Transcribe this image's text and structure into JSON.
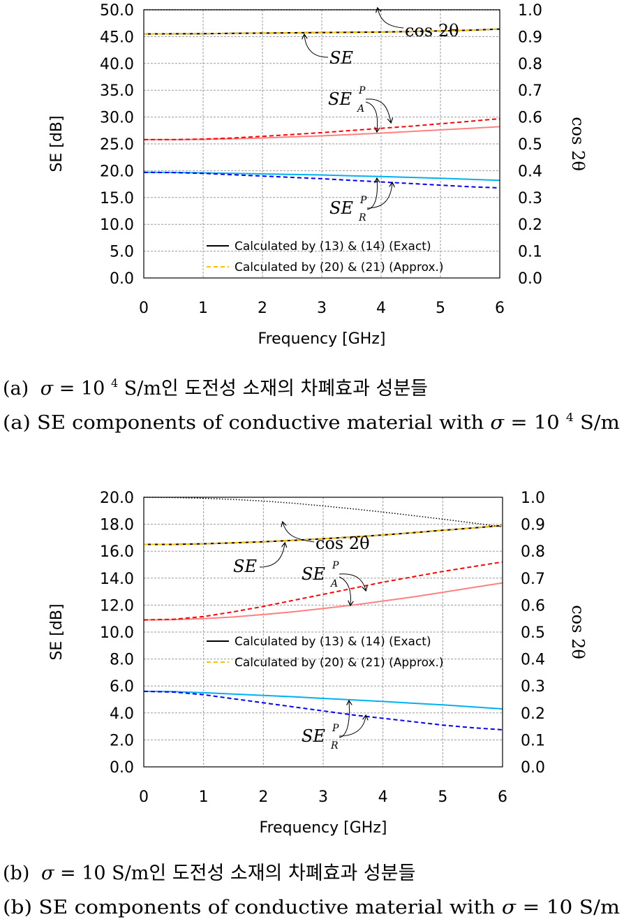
{
  "chart_data": [
    {
      "type": "line",
      "xlabel": "Frequency [GHz]",
      "ylabel": "SE [dB]",
      "y2label": "cos 2θ",
      "xlim": [
        0,
        6
      ],
      "ylim": [
        0,
        50
      ],
      "y2lim": [
        0,
        1
      ],
      "xticks": [
        "0",
        "1",
        "2",
        "3",
        "4",
        "5",
        "6"
      ],
      "yticks": [
        "0.0",
        "5.0",
        "10.0",
        "15.0",
        "20.0",
        "25.0",
        "30.0",
        "35.0",
        "40.0",
        "45.0",
        "50.0"
      ],
      "y2ticks": [
        "0.0",
        "0.1",
        "0.2",
        "0.3",
        "0.4",
        "0.5",
        "0.6",
        "0.7",
        "0.8",
        "0.9",
        "1.0"
      ],
      "grid": true,
      "legend": [
        {
          "label": "Calculated by (13) & (14) (Exact)",
          "style": "solid",
          "color": "#000000"
        },
        {
          "label": "Calculated by (20) & (21) (Approx.)",
          "style": "dashed",
          "color": "#ffc000"
        }
      ],
      "legend_position": "bottom-right",
      "x": [
        0,
        0.5,
        1,
        1.5,
        2,
        2.5,
        3,
        3.5,
        4,
        4.5,
        5,
        5.5,
        6
      ],
      "series": [
        {
          "name": "SE",
          "axis": "left",
          "color": "#000000",
          "style": "solid",
          "values": [
            45.5,
            45.52,
            45.55,
            45.6,
            45.65,
            45.7,
            45.75,
            45.8,
            45.85,
            45.95,
            46.05,
            46.2,
            46.4
          ]
        },
        {
          "name": "SE",
          "axis": "left",
          "color": "#ffc000",
          "style": "dashed",
          "values": [
            45.5,
            45.52,
            45.55,
            45.6,
            45.65,
            45.7,
            45.75,
            45.8,
            45.85,
            45.95,
            46.05,
            46.2,
            46.4
          ]
        },
        {
          "name": "SE_A^P",
          "axis": "left",
          "color": "#ff8080",
          "style": "solid",
          "values": [
            25.8,
            25.8,
            25.85,
            25.95,
            26.1,
            26.3,
            26.5,
            26.75,
            27.0,
            27.3,
            27.6,
            27.9,
            28.2
          ]
        },
        {
          "name": "SE_A^P",
          "axis": "left",
          "color": "#ff0000",
          "style": "dashed",
          "values": [
            25.8,
            25.8,
            25.9,
            26.1,
            26.4,
            26.75,
            27.1,
            27.5,
            27.9,
            28.3,
            28.75,
            29.2,
            29.7
          ]
        },
        {
          "name": "SE_R^P",
          "axis": "left",
          "color": "#00b0f0",
          "style": "solid",
          "values": [
            19.7,
            19.68,
            19.6,
            19.5,
            19.4,
            19.3,
            19.2,
            19.05,
            18.9,
            18.75,
            18.6,
            18.4,
            18.2
          ]
        },
        {
          "name": "SE_R^P",
          "axis": "left",
          "color": "#0000ff",
          "style": "dashed",
          "values": [
            19.7,
            19.65,
            19.5,
            19.25,
            19.0,
            18.75,
            18.5,
            18.2,
            17.9,
            17.6,
            17.3,
            17.0,
            16.8
          ]
        },
        {
          "name": "cos 2θ",
          "axis": "right",
          "color": "#000000",
          "style": "dotted",
          "values": [
            1.0,
            1.0,
            1.0,
            1.0,
            1.0,
            1.0,
            1.0,
            1.0,
            1.0,
            1.0,
            1.0,
            1.0,
            1.0
          ]
        }
      ]
    },
    {
      "type": "line",
      "xlabel": "Frequency [GHz]",
      "ylabel": "SE [dB]",
      "y2label": "cos 2θ",
      "xlim": [
        0,
        6
      ],
      "ylim": [
        0,
        20
      ],
      "y2lim": [
        0,
        1
      ],
      "xticks": [
        "0",
        "1",
        "2",
        "3",
        "4",
        "5",
        "6"
      ],
      "yticks": [
        "0.0",
        "2.0",
        "4.0",
        "6.0",
        "8.0",
        "10.0",
        "12.0",
        "14.0",
        "16.0",
        "18.0",
        "20.0"
      ],
      "y2ticks": [
        "0.0",
        "0.1",
        "0.2",
        "0.3",
        "0.4",
        "0.5",
        "0.6",
        "0.7",
        "0.8",
        "0.9",
        "1.0"
      ],
      "grid": true,
      "legend": [
        {
          "label": "Calculated by (13) & (14) (Exact)",
          "style": "solid",
          "color": "#000000"
        },
        {
          "label": "Calculated by (20) & (21) (Approx.)",
          "style": "dashed",
          "color": "#ffc000"
        }
      ],
      "legend_position": "center-right",
      "x": [
        0,
        0.5,
        1,
        1.5,
        2,
        2.5,
        3,
        3.5,
        4,
        4.5,
        5,
        5.5,
        6
      ],
      "series": [
        {
          "name": "SE",
          "axis": "left",
          "color": "#000000",
          "style": "solid",
          "values": [
            16.5,
            16.5,
            16.55,
            16.62,
            16.7,
            16.8,
            16.92,
            17.05,
            17.2,
            17.37,
            17.55,
            17.72,
            17.9
          ]
        },
        {
          "name": "SE",
          "axis": "left",
          "color": "#ffc000",
          "style": "dashed",
          "values": [
            16.5,
            16.5,
            16.55,
            16.62,
            16.7,
            16.8,
            16.92,
            17.05,
            17.2,
            17.37,
            17.55,
            17.72,
            17.9
          ]
        },
        {
          "name": "SE_A^P",
          "axis": "left",
          "color": "#ff8080",
          "style": "solid",
          "values": [
            10.9,
            10.92,
            11.0,
            11.12,
            11.3,
            11.5,
            11.75,
            12.0,
            12.3,
            12.6,
            12.95,
            13.3,
            13.65
          ]
        },
        {
          "name": "SE_A^P",
          "axis": "left",
          "color": "#ff0000",
          "style": "dashed",
          "values": [
            10.9,
            10.95,
            11.15,
            11.5,
            11.9,
            12.35,
            12.8,
            13.25,
            13.7,
            14.1,
            14.5,
            14.85,
            15.2
          ]
        },
        {
          "name": "SE_R^P",
          "axis": "left",
          "color": "#00b0f0",
          "style": "solid",
          "values": [
            5.6,
            5.58,
            5.5,
            5.4,
            5.3,
            5.2,
            5.08,
            4.97,
            4.85,
            4.72,
            4.6,
            4.45,
            4.3
          ]
        },
        {
          "name": "SE_R^P",
          "axis": "left",
          "color": "#0000ff",
          "style": "dashed",
          "values": [
            5.6,
            5.55,
            5.35,
            5.05,
            4.75,
            4.45,
            4.15,
            3.85,
            3.6,
            3.35,
            3.1,
            2.9,
            2.75
          ]
        },
        {
          "name": "cos 2θ",
          "axis": "right",
          "color": "#000000",
          "style": "dotted",
          "values": [
            1.0,
            0.999,
            0.996,
            0.992,
            0.986,
            0.978,
            0.968,
            0.957,
            0.945,
            0.932,
            0.919,
            0.905,
            0.89
          ]
        }
      ]
    }
  ],
  "annotations": {
    "a": {
      "se": "SE",
      "se_a": "SE",
      "se_a_sub": "A",
      "se_a_sup": "P",
      "se_r": "SE",
      "se_r_sub": "R",
      "se_r_sup": "P",
      "cos": "cos 2θ"
    },
    "b": {
      "se": "SE",
      "se_a": "SE",
      "se_a_sub": "A",
      "se_a_sup": "P",
      "se_r": "SE",
      "se_r_sub": "R",
      "se_r_sup": "P",
      "cos": "cos 2θ"
    }
  },
  "captions": {
    "a_ko_prefix": "(a)",
    "a_ko_sigma": "σ",
    "a_ko_eq": " = 10",
    "a_ko_sup": "4",
    "a_ko_rest": " S/m인 도전성 소재의 차폐효과 성분들",
    "a_en_prefix": "(a) SE components of conductive material with ",
    "a_en_sigma": "σ",
    "a_en_eq": " = 10",
    "a_en_sup": "4",
    "a_en_rest": " S/m",
    "b_ko_prefix": "(b)",
    "b_ko_sigma": "σ",
    "b_ko_eq": " = 10 ",
    "b_ko_rest": "S/m인 도전성 소재의 차폐효과 성분들",
    "b_en_prefix": "(b) SE components of conductive material with ",
    "b_en_sigma": "σ",
    "b_en_eq": " = 10 ",
    "b_en_rest": "S/m"
  }
}
